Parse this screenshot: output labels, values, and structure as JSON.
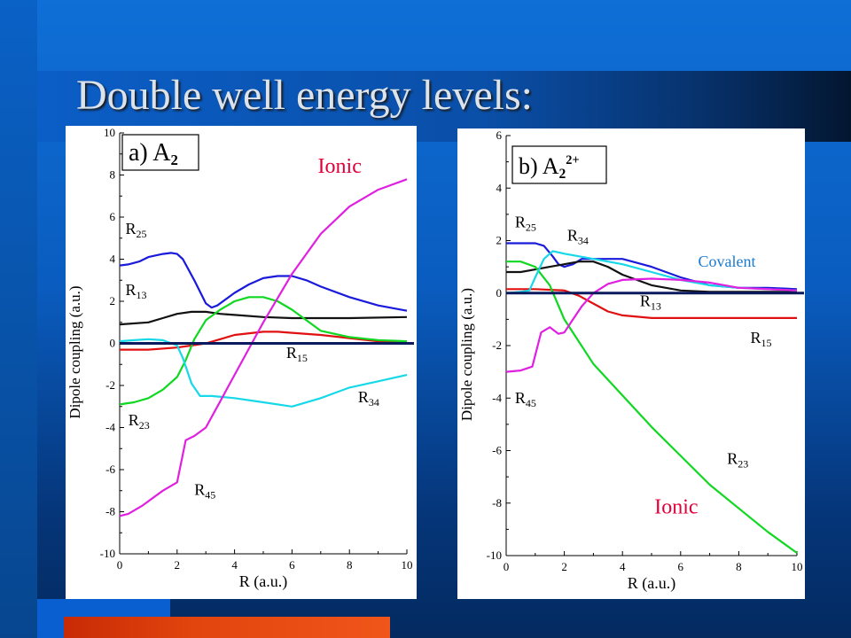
{
  "slide": {
    "title": "Double well energy levels:",
    "colors": {
      "background": "#0a5cbf",
      "accent_bar": "#e2450d",
      "title_text": "#dde3ea"
    }
  },
  "chart_data": [
    {
      "type": "line",
      "panel_label": "a) A",
      "panel_subscript": "2",
      "panel_superscript": "",
      "xlabel": "R (a.u.)",
      "ylabel": "Dipole coupling (a.u.)",
      "xlim": [
        0,
        10
      ],
      "ylim": [
        -10,
        10
      ],
      "xticks": [
        0,
        2,
        4,
        6,
        8,
        10
      ],
      "yticks": [
        -10,
        -8,
        -6,
        -4,
        -2,
        0,
        2,
        4,
        6,
        8,
        10
      ],
      "baseline_y": 0,
      "annotations": [
        {
          "text": "Ionic",
          "color": "#e0003a",
          "x": 6.9,
          "y": 8.1
        }
      ],
      "series": [
        {
          "name": "R25",
          "sub": "25",
          "color": "#1a1adb",
          "label_x": 0.2,
          "label_y": 5.2,
          "x": [
            0,
            0.3,
            0.7,
            1.0,
            1.5,
            1.8,
            2.0,
            2.2,
            2.6,
            3.0,
            3.2,
            3.4,
            4.0,
            4.5,
            5.0,
            5.5,
            6.0,
            6.5,
            7.0,
            8.0,
            9.0,
            10.0
          ],
          "y": [
            3.7,
            3.75,
            3.9,
            4.1,
            4.25,
            4.3,
            4.25,
            4.0,
            3.0,
            1.9,
            1.7,
            1.8,
            2.4,
            2.8,
            3.1,
            3.2,
            3.2,
            3.0,
            2.7,
            2.2,
            1.8,
            1.55
          ]
        },
        {
          "name": "R13",
          "sub": "13",
          "color": "#111111",
          "label_x": 0.2,
          "label_y": 2.3,
          "x": [
            0,
            1.0,
            1.5,
            2.0,
            2.5,
            3.0,
            3.5,
            4.0,
            5.0,
            6.0,
            7.0,
            8.0,
            10.0
          ],
          "y": [
            0.9,
            1.0,
            1.2,
            1.4,
            1.5,
            1.5,
            1.4,
            1.35,
            1.25,
            1.2,
            1.2,
            1.2,
            1.25
          ]
        },
        {
          "name": "R15",
          "sub": "15",
          "color": "#e01010",
          "label_x": 5.8,
          "label_y": -0.7,
          "x": [
            0,
            1.0,
            2.0,
            2.5,
            3.0,
            3.5,
            4.0,
            5.0,
            5.5,
            6.0,
            7.0,
            8.0,
            9.0,
            10.0
          ],
          "y": [
            -0.3,
            -0.3,
            -0.2,
            -0.1,
            0.0,
            0.2,
            0.4,
            0.55,
            0.55,
            0.5,
            0.4,
            0.25,
            0.1,
            0.05
          ]
        },
        {
          "name": "R23",
          "sub": "23",
          "color": "#10d820",
          "label_x": 0.3,
          "label_y": -3.9,
          "x": [
            0,
            0.5,
            1.0,
            1.5,
            2.0,
            2.3,
            2.6,
            3.0,
            3.5,
            4.0,
            4.5,
            5.0,
            5.5,
            6.0,
            6.5,
            7.0,
            8.0,
            9.0,
            10.0
          ],
          "y": [
            -2.9,
            -2.8,
            -2.6,
            -2.2,
            -1.6,
            -0.8,
            0.2,
            1.1,
            1.6,
            2.0,
            2.2,
            2.2,
            2.0,
            1.6,
            1.1,
            0.6,
            0.3,
            0.15,
            0.1
          ]
        },
        {
          "name": "R34",
          "sub": "34",
          "color": "#17d8e8",
          "label_x": 8.3,
          "label_y": -2.8,
          "x": [
            0,
            0.5,
            1.0,
            1.5,
            2.0,
            2.2,
            2.5,
            2.8,
            3.2,
            4.0,
            5.0,
            6.0,
            7.0,
            8.0,
            9.0,
            10.0
          ],
          "y": [
            0.1,
            0.15,
            0.2,
            0.15,
            -0.1,
            -0.7,
            -1.9,
            -2.5,
            -2.5,
            -2.6,
            -2.8,
            -3.0,
            -2.6,
            -2.1,
            -1.8,
            -1.5
          ]
        },
        {
          "name": "R45",
          "sub": "45",
          "color": "#e020e0",
          "label_x": 2.6,
          "label_y": -7.2,
          "x": [
            0,
            0.3,
            0.8,
            1.5,
            2.0,
            2.3,
            2.6,
            3.0,
            3.4,
            4.0,
            5.0,
            6.0,
            7.0,
            8.0,
            9.0,
            10.0
          ],
          "y": [
            -8.2,
            -8.1,
            -7.7,
            -7.0,
            -6.6,
            -4.6,
            -4.4,
            -4.0,
            -3.0,
            -1.5,
            1.0,
            3.3,
            5.2,
            6.5,
            7.3,
            7.8
          ]
        }
      ]
    },
    {
      "type": "line",
      "panel_label": "b) A",
      "panel_subscript": "2",
      "panel_superscript": "2+",
      "xlabel": "R (a.u.)",
      "ylabel": "Dipole coupling (a.u.)",
      "xlim": [
        0,
        10
      ],
      "ylim": [
        -10,
        6
      ],
      "xticks": [
        0,
        2,
        4,
        6,
        8,
        10
      ],
      "yticks": [
        -10,
        -8,
        -6,
        -4,
        -2,
        0,
        2,
        4,
        6
      ],
      "baseline_y": 0,
      "annotations": [
        {
          "text": "Ionic",
          "color": "#e0003a",
          "x": 5.1,
          "y": -8.4
        },
        {
          "text": "Covalent",
          "color": "#1a7ad0",
          "x": 6.6,
          "y": 1.0
        }
      ],
      "series": [
        {
          "name": "R25",
          "sub": "25",
          "color": "#1a1adb",
          "label_x": 0.3,
          "label_y": 2.5,
          "x": [
            0,
            0.5,
            1.0,
            1.3,
            1.6,
            1.8,
            2.0,
            2.3,
            2.6,
            3.0,
            4.0,
            5.0,
            6.0,
            7.0,
            8.0,
            9.0,
            10.0
          ],
          "y": [
            1.9,
            1.9,
            1.9,
            1.8,
            1.4,
            1.1,
            1.0,
            1.1,
            1.3,
            1.3,
            1.3,
            1.0,
            0.6,
            0.3,
            0.2,
            0.2,
            0.15
          ]
        },
        {
          "name": "R13",
          "sub": "13",
          "color": "#111111",
          "label_x": 4.6,
          "label_y": -0.5,
          "x": [
            0,
            0.5,
            1.0,
            1.5,
            2.0,
            2.5,
            3.0,
            3.5,
            4.0,
            5.0,
            6.0,
            7.0,
            8.0,
            10.0
          ],
          "y": [
            0.8,
            0.8,
            0.9,
            1.0,
            1.1,
            1.2,
            1.2,
            1.0,
            0.7,
            0.3,
            0.1,
            0.05,
            0.05,
            0.05
          ]
        },
        {
          "name": "R15",
          "sub": "15",
          "color": "#e01010",
          "label_x": 8.4,
          "label_y": -1.9,
          "x": [
            0,
            1.0,
            2.0,
            2.5,
            3.0,
            3.5,
            4.0,
            5.0,
            6.0,
            7.0,
            8.0,
            10.0
          ],
          "y": [
            0.15,
            0.15,
            0.1,
            -0.1,
            -0.4,
            -0.7,
            -0.85,
            -0.95,
            -0.95,
            -0.95,
            -0.95,
            -0.95
          ]
        },
        {
          "name": "R23",
          "sub": "23",
          "color": "#10d820",
          "label_x": 7.6,
          "label_y": -6.5,
          "x": [
            0,
            0.5,
            1.0,
            1.5,
            2.0,
            3.0,
            4.0,
            5.0,
            6.0,
            7.0,
            8.0,
            9.0,
            10.0
          ],
          "y": [
            1.2,
            1.2,
            1.0,
            0.3,
            -1.0,
            -2.7,
            -3.9,
            -5.1,
            -6.2,
            -7.3,
            -8.2,
            -9.1,
            -9.9
          ]
        },
        {
          "name": "R34",
          "sub": "34",
          "color": "#17d8e8",
          "label_x": 2.1,
          "label_y": 2.0,
          "x": [
            0,
            0.5,
            0.8,
            1.0,
            1.3,
            1.6,
            2.0,
            3.0,
            4.0,
            5.0,
            6.0,
            7.0,
            8.0,
            10.0
          ],
          "y": [
            0.0,
            0.05,
            0.1,
            0.6,
            1.3,
            1.6,
            1.5,
            1.3,
            1.1,
            0.8,
            0.5,
            0.3,
            0.2,
            0.1
          ]
        },
        {
          "name": "R45",
          "sub": "45",
          "color": "#e020e0",
          "label_x": 0.3,
          "label_y": -4.2,
          "x": [
            0,
            0.5,
            0.9,
            1.2,
            1.5,
            1.8,
            2.0,
            2.3,
            2.6,
            3.0,
            3.5,
            4.0,
            5.0,
            6.0,
            7.0,
            8.0,
            10.0
          ],
          "y": [
            -3.0,
            -2.95,
            -2.8,
            -1.5,
            -1.3,
            -1.55,
            -1.5,
            -1.0,
            -0.5,
            0.0,
            0.35,
            0.5,
            0.55,
            0.5,
            0.4,
            0.2,
            0.1
          ]
        }
      ]
    }
  ]
}
